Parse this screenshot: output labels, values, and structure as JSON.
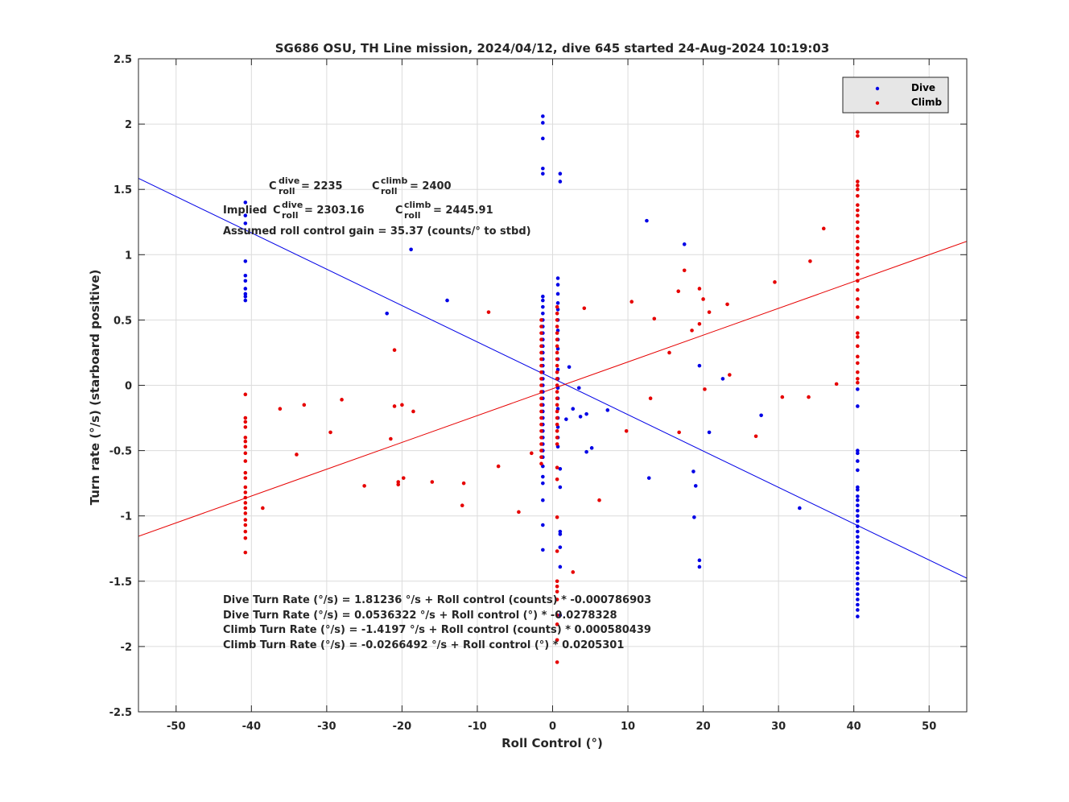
{
  "chart_data": {
    "type": "scatter",
    "title": "SG686 OSU, TH Line mission, 2024/04/12, dive 645 started 24-Aug-2024 10:19:03",
    "xlabel": "Roll Control (°)",
    "ylabel": "Turn rate (°/s) (starboard positive)",
    "xlim": [
      -55,
      55
    ],
    "ylim": [
      -2.5,
      2.5
    ],
    "grid": true,
    "legend_position": "top-right",
    "xticks": [
      -50,
      -40,
      -30,
      -20,
      -10,
      0,
      10,
      20,
      30,
      40,
      50
    ],
    "xtick_labels": [
      "-50",
      "-40",
      "-30",
      "-20",
      "-10",
      "0",
      "10",
      "20",
      "30",
      "40",
      "50"
    ],
    "yticks": [
      -2.5,
      -2,
      -1.5,
      -1,
      -0.5,
      0,
      0.5,
      1,
      1.5,
      2,
      2.5
    ],
    "ytick_labels": [
      "-2.5",
      "-2",
      "-1.5",
      "-1",
      "-0.5",
      "0",
      "0.5",
      "1",
      "1.5",
      "2",
      "2.5"
    ],
    "series": [
      {
        "name": "Dive",
        "color": "#0000e6",
        "points": [
          [
            -1.3,
            2.06
          ],
          [
            -1.3,
            2.01
          ],
          [
            -1.3,
            1.89
          ],
          [
            -1.3,
            1.66
          ],
          [
            -1.3,
            1.62
          ],
          [
            -1.3,
            0.68
          ],
          [
            -1.3,
            0.65
          ],
          [
            -1.3,
            0.6
          ],
          [
            -1.3,
            0.55
          ],
          [
            -1.3,
            0.5
          ],
          [
            -1.3,
            0.45
          ],
          [
            -1.3,
            0.4
          ],
          [
            -1.3,
            0.35
          ],
          [
            -1.3,
            0.3
          ],
          [
            -1.3,
            0.25
          ],
          [
            -1.3,
            0.2
          ],
          [
            -1.3,
            0.15
          ],
          [
            -1.3,
            0.1
          ],
          [
            -1.3,
            0.05
          ],
          [
            -1.3,
            0.0
          ],
          [
            -1.3,
            -0.05
          ],
          [
            -1.3,
            -0.1
          ],
          [
            -1.3,
            -0.15
          ],
          [
            -1.3,
            -0.2
          ],
          [
            -1.3,
            -0.25
          ],
          [
            -1.3,
            -0.3
          ],
          [
            -1.3,
            -0.35
          ],
          [
            -1.3,
            -0.4
          ],
          [
            -1.3,
            -0.45
          ],
          [
            -1.3,
            -0.5
          ],
          [
            -1.3,
            -0.55
          ],
          [
            -1.3,
            -0.62
          ],
          [
            -1.3,
            -0.7
          ],
          [
            -1.3,
            -0.75
          ],
          [
            -1.3,
            -0.88
          ],
          [
            -1.3,
            -1.07
          ],
          [
            -1.3,
            -1.26
          ],
          [
            1.0,
            1.62
          ],
          [
            1.0,
            1.56
          ],
          [
            0.7,
            0.82
          ],
          [
            0.7,
            0.77
          ],
          [
            0.7,
            0.7
          ],
          [
            0.7,
            0.63
          ],
          [
            0.7,
            0.58
          ],
          [
            0.7,
            0.5
          ],
          [
            0.7,
            0.42
          ],
          [
            0.7,
            0.35
          ],
          [
            0.7,
            0.28
          ],
          [
            0.7,
            0.2
          ],
          [
            0.7,
            0.12
          ],
          [
            0.7,
            0.05
          ],
          [
            0.7,
            -0.02
          ],
          [
            0.7,
            -0.1
          ],
          [
            0.7,
            -0.18
          ],
          [
            0.7,
            -0.25
          ],
          [
            0.7,
            -0.32
          ],
          [
            0.7,
            -0.4
          ],
          [
            0.7,
            -0.47
          ],
          [
            1.0,
            -0.64
          ],
          [
            1.0,
            -0.78
          ],
          [
            1.0,
            -1.12
          ],
          [
            1.0,
            -1.14
          ],
          [
            1.0,
            -1.24
          ],
          [
            1.0,
            -1.39
          ],
          [
            1.0,
            -1.76
          ],
          [
            1.8,
            -0.26
          ],
          [
            2.2,
            0.14
          ],
          [
            2.7,
            -0.18
          ],
          [
            3.5,
            -0.02
          ],
          [
            3.7,
            -0.24
          ],
          [
            4.5,
            -0.22
          ],
          [
            4.5,
            -0.51
          ],
          [
            5.2,
            -0.48
          ],
          [
            7.3,
            -0.19
          ],
          [
            12.5,
            1.26
          ],
          [
            12.8,
            -0.71
          ],
          [
            17.5,
            1.08
          ],
          [
            18.7,
            -0.66
          ],
          [
            18.8,
            -1.01
          ],
          [
            19.0,
            -0.77
          ],
          [
            19.5,
            0.15
          ],
          [
            19.5,
            -1.34
          ],
          [
            19.5,
            -1.39
          ],
          [
            20.8,
            -0.36
          ],
          [
            22.6,
            0.05
          ],
          [
            27.7,
            -0.23
          ],
          [
            32.8,
            -0.94
          ],
          [
            -40.8,
            1.4
          ],
          [
            -40.8,
            1.3
          ],
          [
            -40.8,
            1.24
          ],
          [
            -40.8,
            0.95
          ],
          [
            -40.8,
            0.84
          ],
          [
            -40.8,
            0.8
          ],
          [
            -40.8,
            0.74
          ],
          [
            -40.8,
            0.7
          ],
          [
            -40.8,
            0.68
          ],
          [
            -40.8,
            0.65
          ],
          [
            -22.0,
            0.55
          ],
          [
            -18.8,
            1.04
          ],
          [
            -14.0,
            0.65
          ],
          [
            40.5,
            -0.03
          ],
          [
            40.5,
            -0.16
          ],
          [
            40.5,
            -0.5
          ],
          [
            40.5,
            -0.52
          ],
          [
            40.5,
            -0.58
          ],
          [
            40.5,
            -0.65
          ],
          [
            40.5,
            -0.78
          ],
          [
            40.5,
            -0.8
          ],
          [
            40.5,
            -0.85
          ],
          [
            40.5,
            -0.88
          ],
          [
            40.5,
            -0.92
          ],
          [
            40.5,
            -0.96
          ],
          [
            40.5,
            -1.0
          ],
          [
            40.5,
            -1.04
          ],
          [
            40.5,
            -1.08
          ],
          [
            40.5,
            -1.12
          ],
          [
            40.5,
            -1.16
          ],
          [
            40.5,
            -1.2
          ],
          [
            40.5,
            -1.24
          ],
          [
            40.5,
            -1.28
          ],
          [
            40.5,
            -1.32
          ],
          [
            40.5,
            -1.36
          ],
          [
            40.5,
            -1.4
          ],
          [
            40.5,
            -1.44
          ],
          [
            40.5,
            -1.48
          ],
          [
            40.5,
            -1.52
          ],
          [
            40.5,
            -1.56
          ],
          [
            40.5,
            -1.6
          ],
          [
            40.5,
            -1.64
          ],
          [
            40.5,
            -1.68
          ],
          [
            40.5,
            -1.72
          ],
          [
            40.5,
            -1.77
          ]
        ]
      },
      {
        "name": "Climb",
        "color": "#e60000",
        "points": [
          [
            -40.8,
            -0.07
          ],
          [
            -40.8,
            -0.25
          ],
          [
            -40.8,
            -0.28
          ],
          [
            -40.8,
            -0.32
          ],
          [
            -40.8,
            -0.4
          ],
          [
            -40.8,
            -0.43
          ],
          [
            -40.8,
            -0.47
          ],
          [
            -40.8,
            -0.52
          ],
          [
            -40.8,
            -0.58
          ],
          [
            -40.8,
            -0.67
          ],
          [
            -40.8,
            -0.71
          ],
          [
            -40.8,
            -0.78
          ],
          [
            -40.8,
            -0.82
          ],
          [
            -40.8,
            -0.86
          ],
          [
            -40.8,
            -0.9
          ],
          [
            -40.8,
            -0.94
          ],
          [
            -40.8,
            -0.98
          ],
          [
            -40.8,
            -1.03
          ],
          [
            -40.8,
            -1.07
          ],
          [
            -40.8,
            -1.12
          ],
          [
            -40.8,
            -1.17
          ],
          [
            -40.8,
            -1.28
          ],
          [
            -38.5,
            -0.94
          ],
          [
            -36.2,
            -0.18
          ],
          [
            -34.0,
            -0.53
          ],
          [
            -33.0,
            -0.15
          ],
          [
            -29.5,
            -0.36
          ],
          [
            -28.0,
            -0.11
          ],
          [
            -25.0,
            -0.77
          ],
          [
            -21.5,
            -0.41
          ],
          [
            -21.0,
            0.27
          ],
          [
            -21.0,
            -0.16
          ],
          [
            -20.5,
            -0.74
          ],
          [
            -20.5,
            -0.76
          ],
          [
            -20.0,
            -0.15
          ],
          [
            -19.8,
            -0.71
          ],
          [
            -18.5,
            -0.2
          ],
          [
            -16.0,
            -0.74
          ],
          [
            -12.0,
            -0.92
          ],
          [
            -11.8,
            -0.75
          ],
          [
            -8.5,
            0.56
          ],
          [
            -7.2,
            -0.62
          ],
          [
            -4.5,
            -0.97
          ],
          [
            -2.8,
            -0.52
          ],
          [
            -1.5,
            0.5
          ],
          [
            -1.5,
            0.45
          ],
          [
            -1.5,
            0.4
          ],
          [
            -1.5,
            0.35
          ],
          [
            -1.5,
            0.3
          ],
          [
            -1.5,
            0.25
          ],
          [
            -1.5,
            0.2
          ],
          [
            -1.5,
            0.15
          ],
          [
            -1.5,
            0.1
          ],
          [
            -1.5,
            0.05
          ],
          [
            -1.5,
            0.0
          ],
          [
            -1.5,
            -0.05
          ],
          [
            -1.5,
            -0.1
          ],
          [
            -1.5,
            -0.15
          ],
          [
            -1.5,
            -0.2
          ],
          [
            -1.5,
            -0.25
          ],
          [
            -1.5,
            -0.3
          ],
          [
            -1.5,
            -0.35
          ],
          [
            -1.5,
            -0.4
          ],
          [
            -1.5,
            -0.45
          ],
          [
            -1.5,
            -0.5
          ],
          [
            -1.5,
            -0.55
          ],
          [
            -1.5,
            -0.6
          ],
          [
            0.6,
            0.6
          ],
          [
            0.6,
            0.55
          ],
          [
            0.6,
            0.5
          ],
          [
            0.6,
            0.45
          ],
          [
            0.6,
            0.4
          ],
          [
            0.6,
            0.35
          ],
          [
            0.6,
            0.3
          ],
          [
            0.6,
            0.25
          ],
          [
            0.6,
            0.2
          ],
          [
            0.6,
            0.15
          ],
          [
            0.6,
            0.1
          ],
          [
            0.6,
            0.05
          ],
          [
            0.6,
            0.0
          ],
          [
            0.6,
            -0.05
          ],
          [
            0.6,
            -0.1
          ],
          [
            0.6,
            -0.15
          ],
          [
            0.6,
            -0.2
          ],
          [
            0.6,
            -0.25
          ],
          [
            0.6,
            -0.3
          ],
          [
            0.6,
            -0.35
          ],
          [
            0.6,
            -0.4
          ],
          [
            0.6,
            -0.45
          ],
          [
            0.6,
            -0.63
          ],
          [
            0.6,
            -0.72
          ],
          [
            0.6,
            -1.01
          ],
          [
            0.6,
            -1.27
          ],
          [
            0.6,
            -1.5
          ],
          [
            0.6,
            -1.54
          ],
          [
            0.6,
            -1.58
          ],
          [
            0.6,
            -1.64
          ],
          [
            0.6,
            -1.76
          ],
          [
            0.6,
            -1.83
          ],
          [
            0.6,
            -1.95
          ],
          [
            0.6,
            -2.12
          ],
          [
            2.7,
            -1.43
          ],
          [
            4.2,
            0.59
          ],
          [
            6.2,
            -0.88
          ],
          [
            9.8,
            -0.35
          ],
          [
            10.5,
            0.64
          ],
          [
            13.0,
            -0.1
          ],
          [
            13.5,
            0.51
          ],
          [
            15.5,
            0.25
          ],
          [
            16.7,
            0.72
          ],
          [
            16.8,
            -0.36
          ],
          [
            17.5,
            0.88
          ],
          [
            18.5,
            0.42
          ],
          [
            19.5,
            0.74
          ],
          [
            19.5,
            0.47
          ],
          [
            20.0,
            0.66
          ],
          [
            20.2,
            -0.03
          ],
          [
            20.8,
            0.56
          ],
          [
            23.2,
            0.62
          ],
          [
            23.5,
            0.08
          ],
          [
            27.0,
            -0.39
          ],
          [
            29.5,
            0.79
          ],
          [
            30.5,
            -0.09
          ],
          [
            34.0,
            -0.09
          ],
          [
            34.2,
            0.95
          ],
          [
            36.0,
            1.2
          ],
          [
            37.7,
            0.01
          ],
          [
            40.5,
            1.94
          ],
          [
            40.5,
            1.91
          ],
          [
            40.5,
            1.56
          ],
          [
            40.5,
            1.53
          ],
          [
            40.5,
            1.5
          ],
          [
            40.5,
            1.45
          ],
          [
            40.5,
            1.38
          ],
          [
            40.5,
            1.34
          ],
          [
            40.5,
            1.3
          ],
          [
            40.5,
            1.25
          ],
          [
            40.5,
            1.2
          ],
          [
            40.5,
            1.14
          ],
          [
            40.5,
            1.1
          ],
          [
            40.5,
            1.05
          ],
          [
            40.5,
            1.0
          ],
          [
            40.5,
            0.95
          ],
          [
            40.5,
            0.9
          ],
          [
            40.5,
            0.85
          ],
          [
            40.5,
            0.8
          ],
          [
            40.5,
            0.73
          ],
          [
            40.5,
            0.66
          ],
          [
            40.5,
            0.6
          ],
          [
            40.5,
            0.52
          ],
          [
            40.5,
            0.4
          ],
          [
            40.5,
            0.37
          ],
          [
            40.5,
            0.3
          ],
          [
            40.5,
            0.22
          ],
          [
            40.5,
            0.17
          ],
          [
            40.5,
            0.1
          ],
          [
            40.5,
            0.05
          ],
          [
            40.5,
            0.02
          ]
        ]
      }
    ],
    "fit_lines": [
      {
        "series": "Dive",
        "color": "#0000e6",
        "intercept": 0.0536322,
        "slope": -0.0278328
      },
      {
        "series": "Climb",
        "color": "#e60000",
        "intercept": -0.0266492,
        "slope": 0.0205301
      }
    ],
    "annotations": {
      "c_roll_line": {
        "c1": "C",
        "sup1": "dive",
        "sub1": "roll",
        "v1": " = 2235",
        "c2": "C",
        "sup2": "climb",
        "sub2": "roll",
        "v2": " = 2400"
      },
      "implied_line": {
        "prefix": "Implied ",
        "c1": "C",
        "sup1": "dive",
        "sub1": "roll",
        "v1": " = 2303.16",
        "c2": "C",
        "sup2": "climb",
        "sub2": "roll",
        "v2": " = 2445.91"
      },
      "gain": "Assumed roll control gain = 35.37 (counts/° to stbd)",
      "fits": [
        "Dive Turn Rate (°/s) = 1.81236 °/s + Roll control (counts) * -0.000786903",
        "Dive Turn Rate (°/s) = 0.0536322 °/s + Roll control (°) * -0.0278328",
        "Climb Turn Rate (°/s) = -1.4197 °/s + Roll control (counts) * 0.000580439",
        "Climb Turn Rate (°/s) = -0.0266492 °/s + Roll control (°) * 0.0205301"
      ]
    }
  }
}
